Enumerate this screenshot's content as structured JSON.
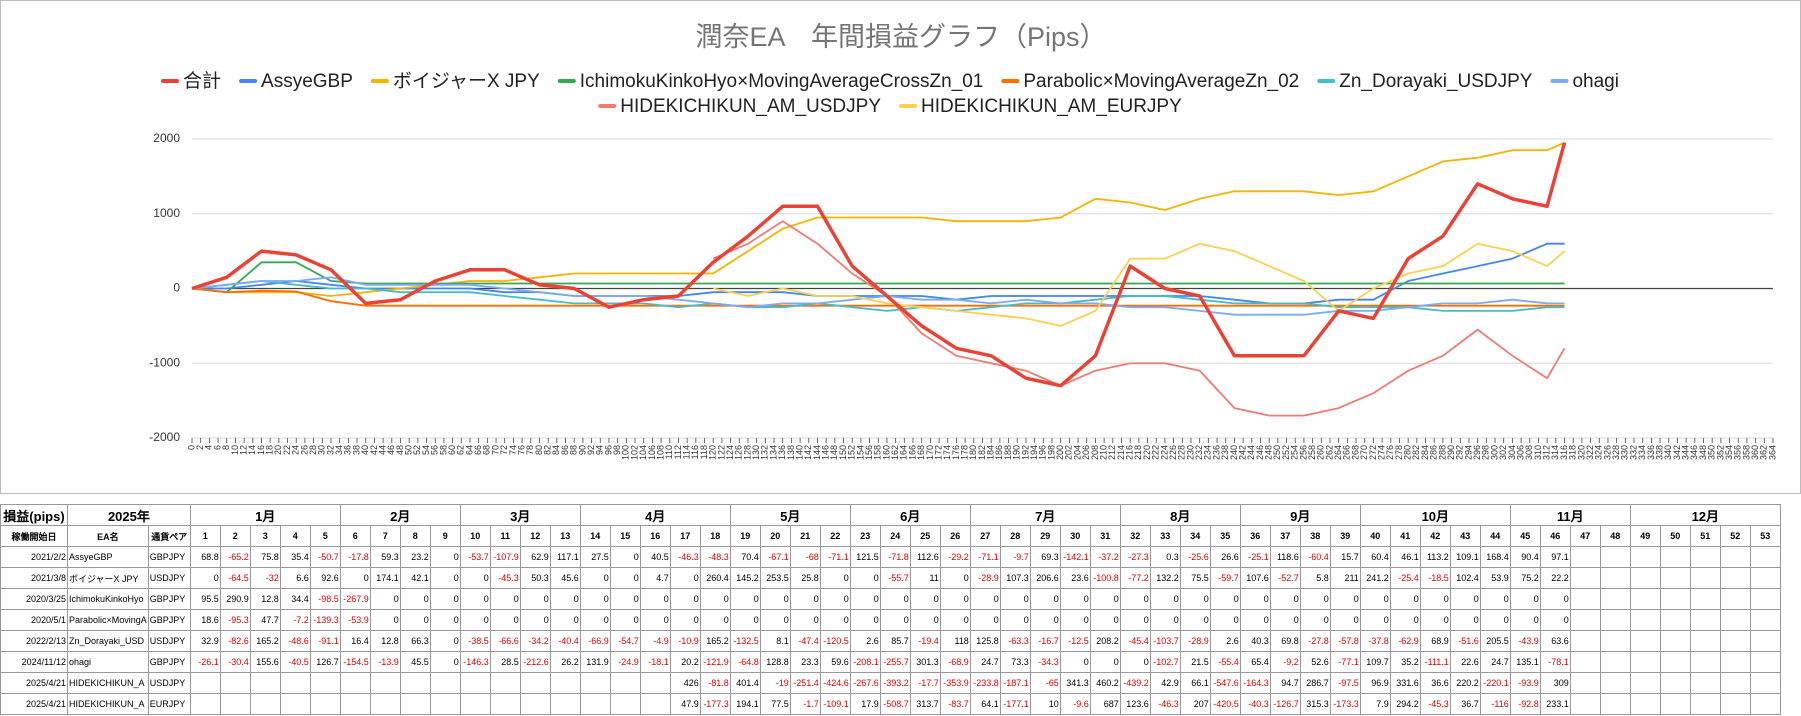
{
  "chart_data": {
    "type": "line",
    "title": "潤奈EA　年間損益グラフ（Pips）",
    "x": [
      0,
      8,
      16,
      24,
      32,
      40,
      48,
      56,
      64,
      72,
      80,
      88,
      96,
      104,
      112,
      120,
      128,
      136,
      144,
      152,
      160,
      168,
      176,
      184,
      192,
      200,
      208,
      216,
      224,
      232,
      240,
      248,
      256,
      264,
      272,
      280,
      288,
      296,
      304,
      312,
      316
    ],
    "series": [
      {
        "name": "合計",
        "color": "#ea4335",
        "values": [
          0,
          150,
          500,
          450,
          250,
          -200,
          -150,
          100,
          250,
          250,
          50,
          0,
          -250,
          -150,
          -100,
          350,
          700,
          1100,
          1100,
          300,
          -100,
          -500,
          -800,
          -900,
          -1200,
          -1300,
          -900,
          300,
          0,
          -100,
          -900,
          -900,
          -900,
          -300,
          -400,
          400,
          700,
          1400,
          1200,
          1100,
          1950
        ]
      },
      {
        "name": "AssyeGBP",
        "color": "#4285f4",
        "values": [
          0,
          0,
          50,
          100,
          50,
          0,
          0,
          0,
          0,
          -50,
          -50,
          -100,
          -100,
          -100,
          -100,
          -50,
          -50,
          -50,
          -100,
          -100,
          -100,
          -100,
          -150,
          -100,
          -100,
          -100,
          -100,
          -100,
          -100,
          -100,
          -150,
          -200,
          -200,
          -150,
          -150,
          100,
          200,
          300,
          400,
          600,
          600
        ]
      },
      {
        "name": "ボイジャーX JPY",
        "color": "#f4b400",
        "values": [
          0,
          -50,
          -50,
          -50,
          -100,
          -50,
          0,
          50,
          100,
          100,
          150,
          200,
          200,
          200,
          200,
          200,
          500,
          800,
          950,
          950,
          950,
          950,
          900,
          900,
          900,
          950,
          1200,
          1150,
          1050,
          1200,
          1300,
          1300,
          1300,
          1250,
          1300,
          1500,
          1700,
          1750,
          1850,
          1850,
          1950
        ]
      },
      {
        "name": "IchimokuKinkoHyo×MovingAverageCrossZn_01",
        "color": "#34a853",
        "values": [
          0,
          -50,
          350,
          350,
          100,
          67,
          67,
          67,
          67,
          67,
          67,
          67,
          67,
          67,
          67,
          67,
          67,
          67,
          67,
          67,
          67,
          67,
          67,
          67,
          67,
          67,
          67,
          67,
          67,
          67,
          67,
          67,
          67,
          67,
          67,
          67,
          67,
          67,
          67,
          67,
          67
        ]
      },
      {
        "name": "Parabolic×MovingAverageZn_02",
        "color": "#ff6d01",
        "values": [
          0,
          -50,
          -30,
          -40,
          -170,
          -230,
          -230,
          -230,
          -230,
          -230,
          -230,
          -230,
          -230,
          -230,
          -230,
          -230,
          -230,
          -230,
          -230,
          -230,
          -230,
          -230,
          -230,
          -230,
          -230,
          -230,
          -230,
          -230,
          -230,
          -230,
          -230,
          -230,
          -230,
          -230,
          -230,
          -230,
          -230,
          -230,
          -230,
          -230,
          -230
        ]
      },
      {
        "name": "Zn_Dorayaki_USDJPY",
        "color": "#46bdc6",
        "values": [
          0,
          50,
          100,
          50,
          0,
          0,
          -50,
          -50,
          -50,
          -100,
          -150,
          -200,
          -200,
          -200,
          -250,
          -200,
          -250,
          -250,
          -200,
          -250,
          -300,
          -250,
          -300,
          -250,
          -200,
          -200,
          -150,
          -100,
          -100,
          -150,
          -200,
          -200,
          -200,
          -250,
          -250,
          -250,
          -300,
          -300,
          -300,
          -250,
          -250
        ]
      },
      {
        "name": "ohagi",
        "color": "#7baaf7",
        "values": [
          0,
          50,
          100,
          100,
          150,
          50,
          50,
          50,
          50,
          0,
          -50,
          -100,
          -100,
          -100,
          -150,
          -200,
          -250,
          -200,
          -200,
          -150,
          -100,
          -150,
          -150,
          -200,
          -150,
          -200,
          -200,
          -250,
          -250,
          -300,
          -350,
          -350,
          -350,
          -300,
          -300,
          -250,
          -200,
          -200,
          -150,
          -200,
          -200
        ]
      },
      {
        "name": "HIDEKICHIKUN_AM_USDJPY",
        "color": "#f07b72",
        "values": [
          null,
          null,
          null,
          null,
          null,
          null,
          null,
          null,
          null,
          null,
          null,
          null,
          null,
          null,
          null,
          400,
          600,
          900,
          600,
          200,
          -100,
          -600,
          -900,
          -1000,
          -1100,
          -1300,
          -1100,
          -1000,
          -1000,
          -1100,
          -1600,
          -1700,
          -1700,
          -1600,
          -1400,
          -1100,
          -900,
          -550,
          -900,
          -1200,
          -800
        ]
      },
      {
        "name": "HIDEKICHIKUN_AM_EURJPY",
        "color": "#fcd04f",
        "values": [
          null,
          null,
          null,
          null,
          null,
          null,
          null,
          null,
          null,
          null,
          null,
          null,
          null,
          null,
          null,
          0,
          -100,
          0,
          -100,
          -100,
          -200,
          -250,
          -300,
          -350,
          -400,
          -500,
          -300,
          400,
          400,
          600,
          500,
          300,
          100,
          -300,
          0,
          200,
          300,
          600,
          500,
          300,
          500
        ]
      }
    ],
    "xlim": [
      0,
      364
    ],
    "xticks": [
      0,
      2,
      4,
      6,
      8,
      10,
      12,
      14,
      16,
      18,
      20,
      22,
      24,
      26,
      28,
      30,
      32,
      34,
      36,
      38,
      40,
      42,
      44,
      46,
      48,
      50,
      52,
      54,
      56,
      58,
      60,
      62,
      64,
      66,
      68,
      70,
      72,
      74,
      76,
      78,
      80,
      82,
      84,
      86,
      88,
      90,
      92,
      94,
      96,
      98,
      100,
      102,
      104,
      106,
      108,
      110,
      112,
      114,
      116,
      118,
      120,
      122,
      124,
      126,
      128,
      130,
      132,
      134,
      136,
      138,
      140,
      142,
      144,
      146,
      148,
      150,
      152,
      154,
      156,
      158,
      160,
      162,
      164,
      166,
      168,
      170,
      172,
      174,
      176,
      178,
      180,
      182,
      184,
      186,
      188,
      190,
      192,
      194,
      196,
      198,
      200,
      202,
      204,
      206,
      208,
      210,
      212,
      214,
      216,
      218,
      220,
      222,
      224,
      226,
      228,
      230,
      232,
      234,
      236,
      238,
      240,
      242,
      244,
      246,
      248,
      250,
      252,
      254,
      256,
      258,
      260,
      262,
      264,
      266,
      268,
      270,
      272,
      274,
      276,
      278,
      280,
      282,
      284,
      286,
      288,
      290,
      292,
      294,
      296,
      298,
      300,
      302,
      304,
      306,
      308,
      310,
      312,
      314,
      316,
      318,
      320,
      322,
      324,
      326,
      328,
      330,
      332,
      334,
      336,
      338,
      340,
      342,
      344,
      346,
      348,
      350,
      352,
      354,
      356,
      358,
      360,
      362,
      364
    ],
    "ylim": [
      -2000,
      2000
    ],
    "yticks": [
      -2000,
      -1000,
      0,
      1000,
      2000
    ],
    "grid": true,
    "legend": "top"
  },
  "table": {
    "corner": "損益(pips)",
    "year": "2025年",
    "months": [
      "1月",
      "2月",
      "3月",
      "4月",
      "5月",
      "6月",
      "7月",
      "8月",
      "9月",
      "10月",
      "11月",
      "12月"
    ],
    "columns": [
      "稼働開始日",
      "EA名",
      "通貨ペア"
    ],
    "weeks": [
      1,
      2,
      3,
      4,
      5,
      6,
      7,
      8,
      9,
      10,
      11,
      12,
      13,
      14,
      15,
      16,
      17,
      18,
      19,
      20,
      21,
      22,
      23,
      24,
      25,
      26,
      27,
      28,
      29,
      30,
      31,
      32,
      33,
      34,
      35,
      36,
      37,
      38,
      39,
      40,
      41,
      42,
      43,
      44,
      45,
      46,
      47,
      48,
      49,
      50,
      51,
      52,
      53
    ],
    "rows": [
      {
        "start": "2021/2/2",
        "name": "AssyeGBP",
        "pair": "GBPJPY",
        "values": [
          68.8,
          -65.2,
          75.8,
          35.4,
          -50.7,
          -17.8,
          59.3,
          23.2,
          0,
          -53.7,
          -107.9,
          62.9,
          117.1,
          27.5,
          0,
          40.5,
          -46.3,
          -48.3,
          70.4,
          -67.1,
          -68,
          -71.1,
          121.5,
          -71.8,
          112.6,
          -29.2,
          -71.1,
          -9.7,
          69.3,
          -142.1,
          -37.2,
          -27.3,
          0.3,
          -25.6,
          26.6,
          -25.1,
          118.6,
          -60.4,
          15.7,
          60.4,
          46.1,
          113.2,
          109.1,
          168.4,
          90.4,
          97.1,
          null,
          null,
          null,
          null,
          null,
          null,
          null
        ]
      },
      {
        "start": "2021/3/8",
        "name": "ボイジャーX JPY",
        "pair": "USDJPY",
        "values": [
          0,
          -64.5,
          -32,
          6.6,
          92.6,
          0,
          174.1,
          42.1,
          0,
          0,
          -45.3,
          50.3,
          45.6,
          0,
          0,
          4.7,
          0,
          260.4,
          145.2,
          253.5,
          25.8,
          0,
          0,
          -55.7,
          11,
          0,
          -28.9,
          107.3,
          206.6,
          23.6,
          -100.8,
          -77.2,
          132.2,
          75.5,
          -59.7,
          107.6,
          -52.7,
          5.8,
          211,
          241.2,
          -25.4,
          -18.5,
          102.4,
          53.9,
          75.2,
          22.2,
          null,
          null,
          null,
          null,
          null,
          null,
          null
        ]
      },
      {
        "start": "2020/3/25",
        "name": "IchimokuKinkoHyo",
        "pair": "GBPJPY",
        "values": [
          95.5,
          290.9,
          12.8,
          34.4,
          -98.5,
          -267.9,
          0,
          0,
          0,
          0,
          0,
          0,
          0,
          0,
          0,
          0,
          0,
          0,
          0,
          0,
          0,
          0,
          0,
          0,
          0,
          0,
          0,
          0,
          0,
          0,
          0,
          0,
          0,
          0,
          0,
          0,
          0,
          0,
          0,
          0,
          0,
          0,
          0,
          0,
          0,
          0,
          null,
          null,
          null,
          null,
          null,
          null,
          null
        ]
      },
      {
        "start": "2020/5/1",
        "name": "Parabolic×MovingA",
        "pair": "GBPJPY",
        "values": [
          18.6,
          -95.3,
          47.7,
          -7.2,
          -139.3,
          -53.9,
          0,
          0,
          0,
          0,
          0,
          0,
          0,
          0,
          0,
          0,
          0,
          0,
          0,
          0,
          0,
          0,
          0,
          0,
          0,
          0,
          0,
          0,
          0,
          0,
          0,
          0,
          0,
          0,
          0,
          0,
          0,
          0,
          0,
          0,
          0,
          0,
          0,
          0,
          0,
          0,
          null,
          null,
          null,
          null,
          null,
          null,
          null
        ]
      },
      {
        "start": "2022/2/13",
        "name": "Zn_Dorayaki_USD",
        "pair": "USDJPY",
        "values": [
          32.9,
          -82.6,
          165.2,
          -48.6,
          -91.1,
          16.4,
          12.8,
          66.3,
          0,
          -38.5,
          -66.6,
          -34.2,
          -40.4,
          -66.9,
          -54.7,
          -4.9,
          -10.9,
          165.2,
          -132.5,
          8.1,
          -47.4,
          -120.5,
          2.6,
          85.7,
          -19.4,
          118,
          125.8,
          -63.3,
          -16.7,
          -12.5,
          208.2,
          -45.4,
          -103.7,
          -28.9,
          2.6,
          40.3,
          69.8,
          -27.8,
          -57.8,
          -37.8,
          -62.9,
          68.9,
          -51.6,
          205.5,
          -43.9,
          63.6,
          null,
          null,
          null,
          null,
          null,
          null,
          null
        ]
      },
      {
        "start": "2024/11/12",
        "name": "ohagi",
        "pair": "GBPJPY",
        "values": [
          -26.1,
          -30.4,
          155.6,
          -40.5,
          126.7,
          -154.5,
          -13.9,
          45.5,
          0,
          -146.3,
          28.5,
          -212.6,
          26.2,
          131.9,
          -24.9,
          -18.1,
          20.2,
          -121.9,
          -64.8,
          128.8,
          23.3,
          59.6,
          -208.1,
          -255.7,
          301.3,
          -68.9,
          24.7,
          73.3,
          -34.3,
          0,
          0,
          0,
          -102.7,
          21.5,
          -55.4,
          65.4,
          -9.2,
          52.6,
          -77.1,
          109.7,
          35.2,
          -111.1,
          22.6,
          24.7,
          135.1,
          -78.1,
          null,
          null,
          null,
          null,
          null,
          null,
          null
        ]
      },
      {
        "start": "2025/4/21",
        "name": "HIDEKICHIKUN_A",
        "pair": "USDJPY",
        "values": [
          null,
          null,
          null,
          null,
          null,
          null,
          null,
          null,
          null,
          null,
          null,
          null,
          null,
          null,
          null,
          null,
          426,
          -81.8,
          401.4,
          -19,
          -251.4,
          -424.6,
          -267.6,
          -393.2,
          -17.7,
          -353.9,
          -233.8,
          -187.1,
          -65,
          341.3,
          460.2,
          -439.2,
          42.9,
          66.1,
          -547.6,
          -164.3,
          94.7,
          286.7,
          -97.5,
          96.9,
          331.6,
          36.6,
          220.2,
          -220.1,
          -93.9,
          309,
          null,
          null,
          null,
          null,
          null,
          null,
          null
        ]
      },
      {
        "start": "2025/4/21",
        "name": "HIDEKICHIKUN_A",
        "pair": "EURJPY",
        "values": [
          null,
          null,
          null,
          null,
          null,
          null,
          null,
          null,
          null,
          null,
          null,
          null,
          null,
          null,
          null,
          null,
          47.9,
          -177.3,
          194.1,
          77.5,
          -1.7,
          -109.1,
          17.9,
          -508.7,
          313.7,
          -83.7,
          64.1,
          -177.1,
          10,
          -9.6,
          687,
          123.6,
          -46.3,
          207,
          -420.5,
          -40.3,
          -126.7,
          315.3,
          -173.3,
          7.9,
          294.2,
          -45.3,
          36.7,
          -116,
          -92.8,
          233.1,
          null,
          null,
          null,
          null,
          null,
          null,
          null
        ]
      }
    ]
  }
}
